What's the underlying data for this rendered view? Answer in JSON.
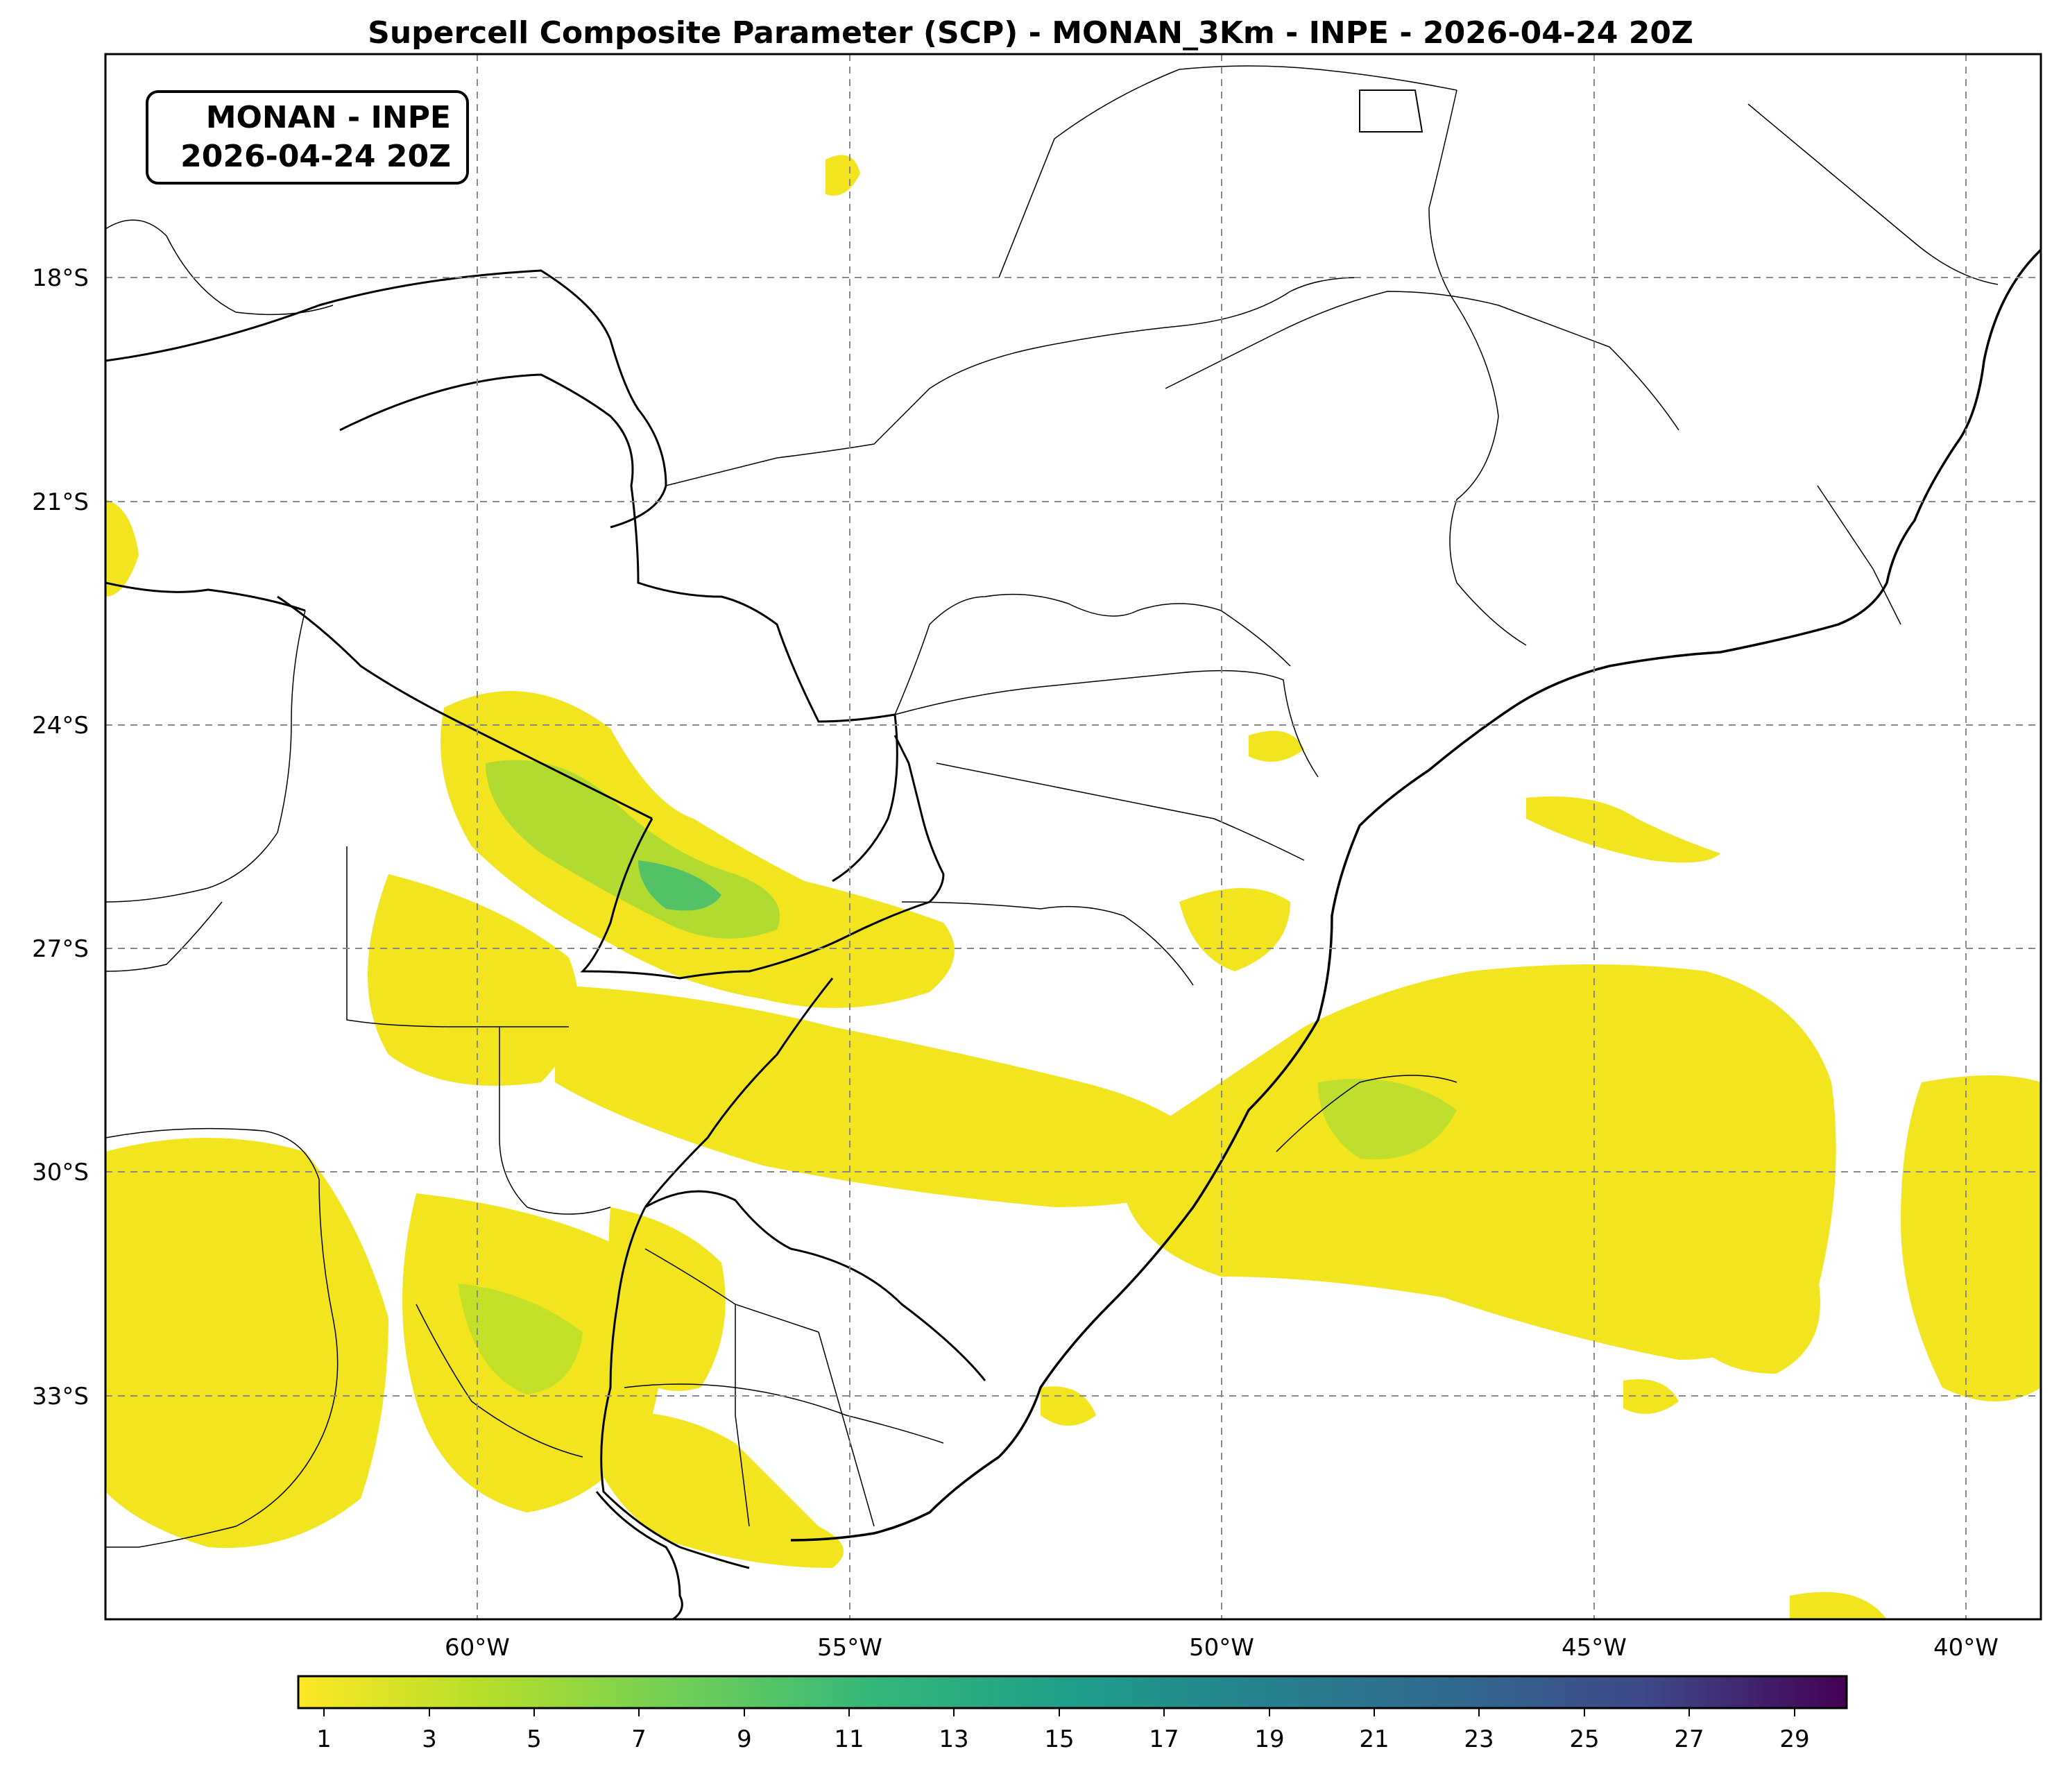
{
  "title": "Supercell Composite Parameter (SCP) - MONAN_3Km - INPE - 2026-04-24 20Z",
  "info_box": {
    "line1": "MONAN - INPE",
    "line2": "2026-04-24 20Z"
  },
  "map": {
    "lon_range": [
      -65,
      -39
    ],
    "lat_range": [
      -36,
      -15
    ],
    "lon_ticks": [
      {
        "value": -60,
        "label": "60°W"
      },
      {
        "value": -55,
        "label": "55°W"
      },
      {
        "value": -50,
        "label": "50°W"
      },
      {
        "value": -45,
        "label": "45°W"
      },
      {
        "value": -40,
        "label": "40°W"
      }
    ],
    "lat_ticks": [
      {
        "value": -18,
        "label": "18°S"
      },
      {
        "value": -21,
        "label": "21°S"
      },
      {
        "value": -24,
        "label": "24°S"
      },
      {
        "value": -27,
        "label": "27°S"
      },
      {
        "value": -30,
        "label": "30°S"
      },
      {
        "value": -33,
        "label": "33°S"
      }
    ],
    "gridlines": true
  },
  "colorbar": {
    "colormap": "viridis_r",
    "range": [
      0.5,
      30
    ],
    "ticks": [
      "1",
      "3",
      "5",
      "7",
      "9",
      "11",
      "13",
      "15",
      "17",
      "19",
      "21",
      "23",
      "25",
      "27",
      "29"
    ]
  },
  "colors": {
    "low": "#f2e51f",
    "mid": "#90d743",
    "high": "#440154",
    "border": "#000000",
    "grid": "#888888"
  }
}
